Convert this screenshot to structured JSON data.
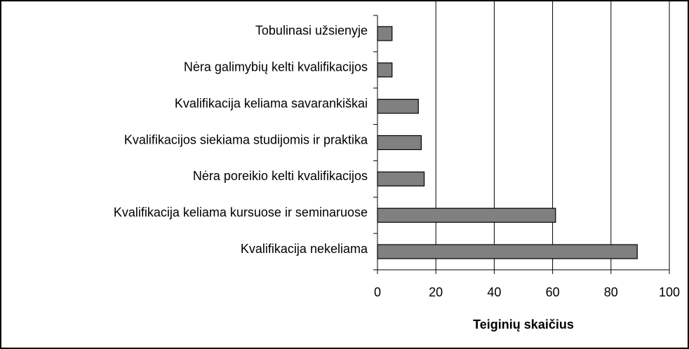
{
  "chart_data": {
    "type": "bar",
    "orientation": "horizontal",
    "x_axis_label": "Teiginių skaičius",
    "categories": [
      "Tobulinasi užsienyje",
      "Nėra galimybių kelti kvalifikacijos",
      "Kvalifikacija keliama savarankiškai",
      "Kvalifikacijos siekiama studijomis ir praktika",
      "Nėra poreikio kelti kvalifikacijos",
      "Kvalifikacija keliama kursuose ir seminaruose",
      "Kvalifikacija nekeliama"
    ],
    "values": [
      5,
      5,
      14,
      15,
      16,
      61,
      89
    ],
    "color": "#808080",
    "xlim": [
      0,
      100
    ],
    "xticks": [
      0,
      20,
      40,
      60,
      80,
      100
    ],
    "grid": true
  }
}
